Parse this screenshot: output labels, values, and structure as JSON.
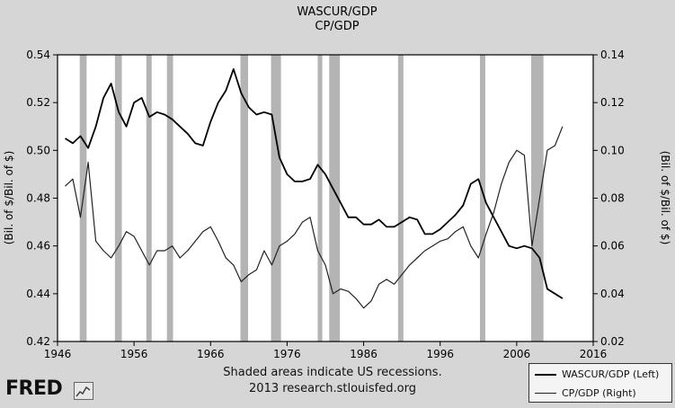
{
  "chart_data": {
    "type": "line",
    "title": "WASCUR/GDP",
    "subtitle": "CP/GDP",
    "ylabel_left": "(Bil. of $/Bil. of $)",
    "ylabel_right": "(Bil. of $/Bil. of $)",
    "xlim": [
      1946,
      2016
    ],
    "ylim_left": [
      0.42,
      0.54
    ],
    "ylim_right": [
      0.02,
      0.14
    ],
    "x_ticks": [
      "1946",
      "1956",
      "1966",
      "1976",
      "1986",
      "1996",
      "2006",
      "2016"
    ],
    "y_ticks_left": [
      "0.42",
      "0.44",
      "0.46",
      "0.48",
      "0.50",
      "0.52",
      "0.54"
    ],
    "y_ticks_right": [
      "0.02",
      "0.04",
      "0.06",
      "0.08",
      "0.10",
      "0.12",
      "0.14"
    ],
    "grid": false,
    "recessions": [
      [
        1948.9,
        1949.8
      ],
      [
        1953.5,
        1954.4
      ],
      [
        1957.6,
        1958.3
      ],
      [
        1960.3,
        1961.1
      ],
      [
        1969.9,
        1970.9
      ],
      [
        1973.9,
        1975.2
      ],
      [
        1980.0,
        1980.6
      ],
      [
        1981.5,
        1982.9
      ],
      [
        1990.5,
        1991.2
      ],
      [
        2001.2,
        2001.9
      ],
      [
        2007.9,
        2009.5
      ]
    ],
    "series": [
      {
        "name": "WASCUR/GDP (Left)",
        "axis": "left",
        "x": [
          1947,
          1948,
          1949,
          1950,
          1951,
          1952,
          1953,
          1954,
          1955,
          1956,
          1957,
          1958,
          1959,
          1960,
          1961,
          1962,
          1963,
          1964,
          1965,
          1966,
          1967,
          1968,
          1969,
          1970,
          1971,
          1972,
          1973,
          1974,
          1975,
          1976,
          1977,
          1978,
          1979,
          1980,
          1981,
          1982,
          1983,
          1984,
          1985,
          1986,
          1987,
          1988,
          1989,
          1990,
          1991,
          1992,
          1993,
          1994,
          1995,
          1996,
          1997,
          1998,
          1999,
          2000,
          2001,
          2002,
          2003,
          2004,
          2005,
          2006,
          2007,
          2008,
          2009,
          2010,
          2011,
          2012
        ],
        "values": [
          0.505,
          0.503,
          0.506,
          0.501,
          0.51,
          0.522,
          0.528,
          0.516,
          0.51,
          0.52,
          0.522,
          0.514,
          0.516,
          0.515,
          0.513,
          0.51,
          0.507,
          0.503,
          0.502,
          0.512,
          0.52,
          0.525,
          0.534,
          0.524,
          0.518,
          0.515,
          0.516,
          0.515,
          0.497,
          0.49,
          0.487,
          0.487,
          0.488,
          0.494,
          0.49,
          0.484,
          0.478,
          0.472,
          0.472,
          0.469,
          0.469,
          0.471,
          0.468,
          0.468,
          0.47,
          0.472,
          0.471,
          0.465,
          0.465,
          0.467,
          0.47,
          0.473,
          0.477,
          0.486,
          0.488,
          0.478,
          0.472,
          0.466,
          0.46,
          0.459,
          0.46,
          0.459,
          0.455,
          0.442,
          0.44,
          0.438
        ]
      },
      {
        "name": "CP/GDP (Right)",
        "axis": "right",
        "x": [
          1947,
          1948,
          1949,
          1950,
          1951,
          1952,
          1953,
          1954,
          1955,
          1956,
          1957,
          1958,
          1959,
          1960,
          1961,
          1962,
          1963,
          1964,
          1965,
          1966,
          1967,
          1968,
          1969,
          1970,
          1971,
          1972,
          1973,
          1974,
          1975,
          1976,
          1977,
          1978,
          1979,
          1980,
          1981,
          1982,
          1983,
          1984,
          1985,
          1986,
          1987,
          1988,
          1989,
          1990,
          1991,
          1992,
          1993,
          1994,
          1995,
          1996,
          1997,
          1998,
          1999,
          2000,
          2001,
          2002,
          2003,
          2004,
          2005,
          2006,
          2007,
          2008,
          2009,
          2010,
          2011,
          2012
        ],
        "values": [
          0.085,
          0.088,
          0.072,
          0.095,
          0.062,
          0.058,
          0.055,
          0.06,
          0.066,
          0.064,
          0.058,
          0.052,
          0.058,
          0.058,
          0.06,
          0.055,
          0.058,
          0.062,
          0.066,
          0.068,
          0.062,
          0.055,
          0.052,
          0.045,
          0.048,
          0.05,
          0.058,
          0.052,
          0.06,
          0.062,
          0.065,
          0.07,
          0.072,
          0.058,
          0.052,
          0.04,
          0.042,
          0.041,
          0.038,
          0.034,
          0.037,
          0.044,
          0.046,
          0.044,
          0.048,
          0.052,
          0.055,
          0.058,
          0.06,
          0.062,
          0.063,
          0.066,
          0.068,
          0.06,
          0.055,
          0.065,
          0.074,
          0.086,
          0.095,
          0.1,
          0.098,
          0.06,
          0.08,
          0.1,
          0.102,
          0.11
        ]
      }
    ],
    "legend_position": "bottom-right"
  },
  "footer": {
    "note_line1": "Shaded areas indicate US recessions.",
    "note_line2": "2013 research.stlouisfed.org",
    "logo_text": "FRED"
  },
  "colors": {
    "background": "#d6d6d6",
    "plot_background": "#ffffff",
    "recession_shade": "#b4b4b4",
    "series_left": "#000000",
    "series_right": "#222222"
  }
}
